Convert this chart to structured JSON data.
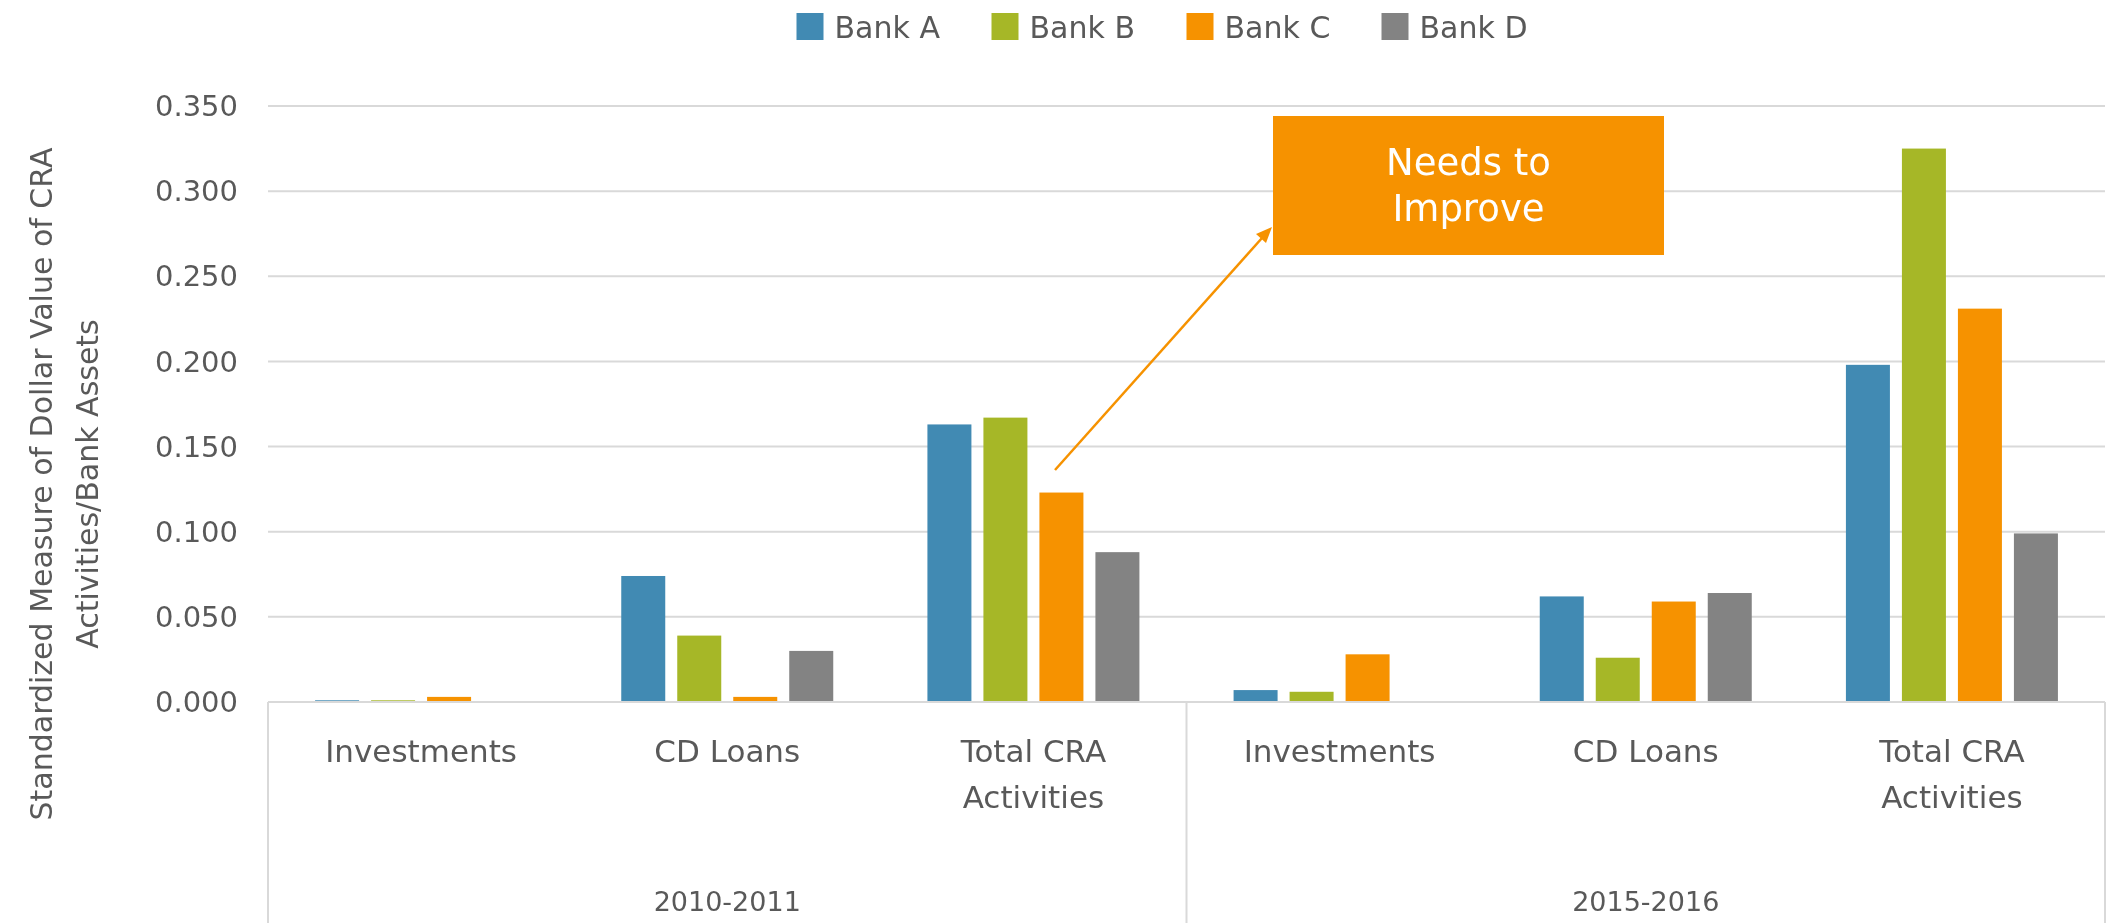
{
  "chart_data": {
    "type": "bar",
    "ylabel": "Standardized Measure of Dollar Value of  CRA Activities/Bank Assets",
    "categories": [
      "Investments",
      "CD Loans",
      "Total CRA Activities",
      "Investments",
      "CD Loans",
      "Total CRA Activities"
    ],
    "series": [
      {
        "name": "Bank A",
        "color": "#418ab3",
        "values": [
          0.001,
          0.074,
          0.163,
          0.007,
          0.062,
          0.198
        ]
      },
      {
        "name": "Bank B",
        "color": "#a6b727",
        "values": [
          0.001,
          0.039,
          0.167,
          0.006,
          0.026,
          0.325
        ]
      },
      {
        "name": "Bank C",
        "color": "#f69200",
        "values": [
          0.003,
          0.003,
          0.123,
          0.028,
          0.059,
          0.231
        ]
      },
      {
        "name": "Bank D",
        "color": "#838383",
        "values": [
          0,
          0.03,
          0.088,
          0,
          0.064,
          0.099
        ]
      }
    ],
    "ylim": [
      0,
      0.35
    ],
    "yticks": [
      {
        "value": 0,
        "label": "0.000"
      },
      {
        "value": 0.05,
        "label": "0.050"
      },
      {
        "value": 0.1,
        "label": "0.100"
      },
      {
        "value": 0.15,
        "label": "0.150"
      },
      {
        "value": 0.2,
        "label": "0.200"
      },
      {
        "value": 0.25,
        "label": "0.250"
      },
      {
        "value": 0.3,
        "label": "0.300"
      },
      {
        "value": 0.35,
        "label": "0.350"
      }
    ],
    "grid": "y",
    "legend": "top",
    "annotations": [
      "2010-2011",
      "2015-2016",
      "Needs to Improve"
    ]
  }
}
